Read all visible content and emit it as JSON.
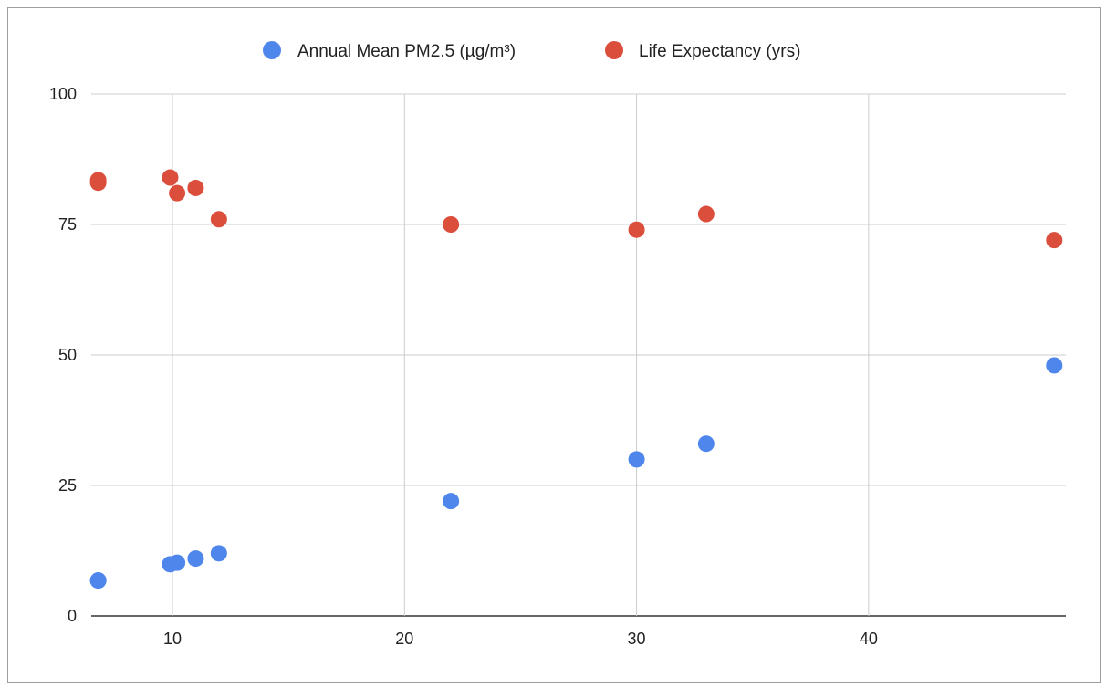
{
  "chart_data": {
    "type": "scatter",
    "title": "",
    "xlabel": "",
    "ylabel": "",
    "xlim": [
      6.5,
      48.5
    ],
    "ylim": [
      0,
      100
    ],
    "x_ticks": [
      10,
      20,
      30,
      40
    ],
    "y_ticks": [
      0,
      25,
      50,
      75,
      100
    ],
    "grid": true,
    "legend_position": "top",
    "x": [
      6.8,
      6.8,
      9.9,
      10.2,
      11,
      12,
      22,
      30,
      33,
      48
    ],
    "series": [
      {
        "name": "Annual Mean PM2.5 (µg/m³)",
        "color": "#4f86ec",
        "values": [
          6.8,
          6.8,
          9.9,
          10.2,
          11,
          12,
          22,
          30,
          33,
          48
        ]
      },
      {
        "name": "Life Expectancy (yrs)",
        "color": "#db4e3c",
        "values": [
          83.5,
          83,
          84,
          81,
          82,
          76,
          75,
          74,
          77,
          72
        ]
      }
    ]
  }
}
